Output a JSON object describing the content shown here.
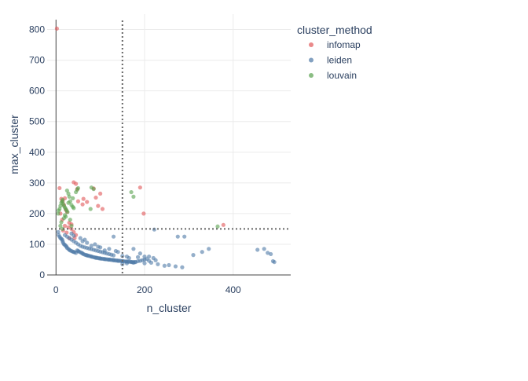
{
  "chart_data": {
    "type": "scatter",
    "title": "",
    "xlabel": "n_cluster",
    "ylabel": "max_cluster",
    "xlim": [
      -20,
      530
    ],
    "ylim": [
      0,
      850
    ],
    "x_ticks": [
      0,
      200,
      400
    ],
    "y_ticks": [
      0,
      100,
      200,
      300,
      400,
      500,
      600,
      700,
      800
    ],
    "grid": true,
    "legend_title": "cluster_method",
    "legend_position": "top-right-outside",
    "reference_lines": {
      "vertical_x": 150,
      "horizontal_y": 150,
      "style": "dotted"
    },
    "series": [
      {
        "name": "infomap",
        "color": "#e15759",
        "points": [
          [
            2,
            803
          ],
          [
            8,
            283
          ],
          [
            12,
            248
          ],
          [
            15,
            240
          ],
          [
            18,
            228
          ],
          [
            20,
            250
          ],
          [
            22,
            213
          ],
          [
            25,
            205
          ],
          [
            10,
            200
          ],
          [
            14,
            180
          ],
          [
            30,
            170
          ],
          [
            35,
            165
          ],
          [
            40,
            302
          ],
          [
            45,
            297
          ],
          [
            48,
            280
          ],
          [
            50,
            240
          ],
          [
            60,
            230
          ],
          [
            62,
            248
          ],
          [
            70,
            238
          ],
          [
            85,
            282
          ],
          [
            90,
            252
          ],
          [
            100,
            265
          ],
          [
            105,
            215
          ],
          [
            95,
            225
          ],
          [
            40,
            140
          ],
          [
            45,
            130
          ],
          [
            30,
            120
          ],
          [
            28,
            155
          ],
          [
            190,
            285
          ],
          [
            198,
            200
          ],
          [
            378,
            163
          ],
          [
            20,
            160
          ],
          [
            35,
            150
          ],
          [
            42,
            120
          ],
          [
            16,
            145
          ],
          [
            24,
            138
          ]
        ]
      },
      {
        "name": "leiden",
        "color": "#4e79a7",
        "points": [
          [
            5,
            140
          ],
          [
            6,
            130
          ],
          [
            8,
            125
          ],
          [
            10,
            120
          ],
          [
            12,
            118
          ],
          [
            14,
            115
          ],
          [
            15,
            110
          ],
          [
            16,
            105
          ],
          [
            18,
            100
          ],
          [
            20,
            98
          ],
          [
            22,
            95
          ],
          [
            24,
            92
          ],
          [
            25,
            88
          ],
          [
            28,
            85
          ],
          [
            30,
            82
          ],
          [
            32,
            80
          ],
          [
            35,
            78
          ],
          [
            38,
            76
          ],
          [
            40,
            75
          ],
          [
            42,
            74
          ],
          [
            45,
            72
          ],
          [
            48,
            80
          ],
          [
            50,
            78
          ],
          [
            52,
            76
          ],
          [
            55,
            74
          ],
          [
            58,
            72
          ],
          [
            60,
            70
          ],
          [
            62,
            68
          ],
          [
            65,
            66
          ],
          [
            68,
            65
          ],
          [
            70,
            64
          ],
          [
            72,
            63
          ],
          [
            75,
            62
          ],
          [
            78,
            61
          ],
          [
            80,
            60
          ],
          [
            82,
            59
          ],
          [
            85,
            58
          ],
          [
            88,
            57
          ],
          [
            90,
            56
          ],
          [
            92,
            56
          ],
          [
            95,
            55
          ],
          [
            98,
            54
          ],
          [
            100,
            54
          ],
          [
            102,
            53
          ],
          [
            105,
            53
          ],
          [
            108,
            52
          ],
          [
            110,
            52
          ],
          [
            112,
            51
          ],
          [
            115,
            51
          ],
          [
            118,
            50
          ],
          [
            120,
            50
          ],
          [
            122,
            50
          ],
          [
            125,
            49
          ],
          [
            128,
            49
          ],
          [
            130,
            48
          ],
          [
            132,
            48
          ],
          [
            135,
            47
          ],
          [
            138,
            47
          ],
          [
            140,
            46
          ],
          [
            142,
            46
          ],
          [
            145,
            46
          ],
          [
            148,
            45
          ],
          [
            150,
            45
          ],
          [
            152,
            45
          ],
          [
            155,
            44
          ],
          [
            158,
            44
          ],
          [
            160,
            44
          ],
          [
            162,
            43
          ],
          [
            165,
            43
          ],
          [
            168,
            43
          ],
          [
            170,
            42
          ],
          [
            172,
            42
          ],
          [
            175,
            42
          ],
          [
            178,
            42
          ],
          [
            180,
            42
          ],
          [
            185,
            45
          ],
          [
            190,
            46
          ],
          [
            195,
            48
          ],
          [
            200,
            50
          ],
          [
            205,
            52
          ],
          [
            210,
            46
          ],
          [
            215,
            40
          ],
          [
            220,
            55
          ],
          [
            225,
            48
          ],
          [
            30,
            120
          ],
          [
            35,
            115
          ],
          [
            40,
            110
          ],
          [
            45,
            105
          ],
          [
            50,
            100
          ],
          [
            55,
            95
          ],
          [
            60,
            92
          ],
          [
            65,
            90
          ],
          [
            70,
            88
          ],
          [
            75,
            86
          ],
          [
            80,
            84
          ],
          [
            85,
            82
          ],
          [
            90,
            80
          ],
          [
            95,
            78
          ],
          [
            100,
            76
          ],
          [
            105,
            74
          ],
          [
            110,
            72
          ],
          [
            115,
            70
          ],
          [
            120,
            68
          ],
          [
            125,
            66
          ],
          [
            130,
            64
          ],
          [
            60,
            110
          ],
          [
            70,
            105
          ],
          [
            80,
            95
          ],
          [
            100,
            90
          ],
          [
            120,
            85
          ],
          [
            140,
            75
          ],
          [
            160,
            60
          ],
          [
            175,
            85
          ],
          [
            190,
            70
          ],
          [
            210,
            60
          ],
          [
            230,
            35
          ],
          [
            245,
            30
          ],
          [
            255,
            32
          ],
          [
            270,
            28
          ],
          [
            285,
            25
          ],
          [
            275,
            125
          ],
          [
            290,
            125
          ],
          [
            222,
            148
          ],
          [
            130,
            125
          ],
          [
            310,
            65
          ],
          [
            330,
            75
          ],
          [
            345,
            85
          ],
          [
            455,
            82
          ],
          [
            470,
            85
          ],
          [
            478,
            72
          ],
          [
            485,
            68
          ],
          [
            490,
            45
          ],
          [
            493,
            42
          ],
          [
            150,
            35
          ],
          [
            160,
            38
          ],
          [
            175,
            40
          ],
          [
            200,
            38
          ],
          [
            20,
            130
          ],
          [
            25,
            125
          ],
          [
            35,
            135
          ],
          [
            40,
            128
          ],
          [
            55,
            120
          ],
          [
            65,
            115
          ],
          [
            88,
            100
          ],
          [
            95,
            92
          ],
          [
            110,
            80
          ],
          [
            135,
            78
          ],
          [
            150,
            62
          ],
          [
            165,
            55
          ],
          [
            185,
            58
          ],
          [
            200,
            60
          ]
        ]
      },
      {
        "name": "louvain",
        "color": "#59a14f",
        "points": [
          [
            5,
            200
          ],
          [
            6,
            210
          ],
          [
            8,
            215
          ],
          [
            10,
            225
          ],
          [
            12,
            235
          ],
          [
            14,
            240
          ],
          [
            15,
            245
          ],
          [
            16,
            232
          ],
          [
            18,
            225
          ],
          [
            20,
            220
          ],
          [
            22,
            215
          ],
          [
            24,
            210
          ],
          [
            25,
            275
          ],
          [
            28,
            265
          ],
          [
            30,
            255
          ],
          [
            32,
            240
          ],
          [
            35,
            228
          ],
          [
            38,
            222
          ],
          [
            40,
            218
          ],
          [
            45,
            270
          ],
          [
            48,
            278
          ],
          [
            50,
            283
          ],
          [
            80,
            285
          ],
          [
            85,
            280
          ],
          [
            78,
            215
          ],
          [
            20,
            195
          ],
          [
            22,
            190
          ],
          [
            18,
            185
          ],
          [
            12,
            172
          ],
          [
            10,
            160
          ],
          [
            15,
            150
          ],
          [
            170,
            270
          ],
          [
            175,
            255
          ],
          [
            365,
            158
          ],
          [
            26,
            205
          ],
          [
            32,
            180
          ],
          [
            35,
            160
          ],
          [
            28,
            235
          ],
          [
            38,
            250
          ]
        ]
      }
    ]
  }
}
